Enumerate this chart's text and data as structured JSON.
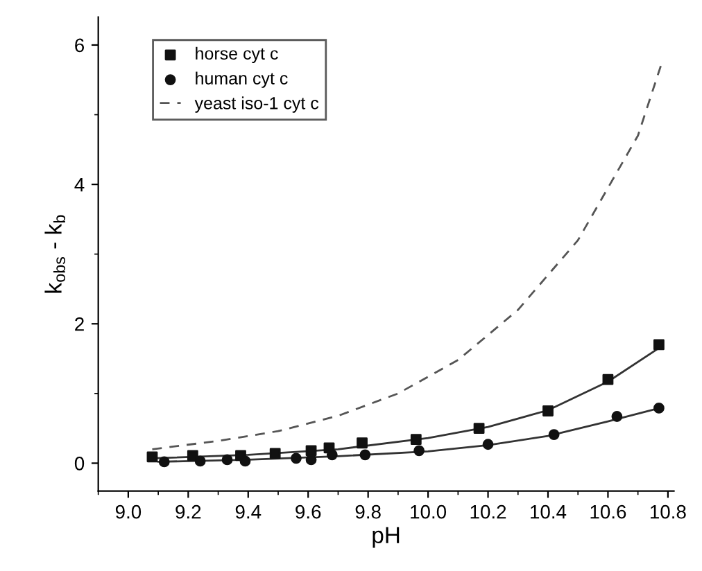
{
  "chart_data": {
    "type": "scatter",
    "xlabel": "pH",
    "ylabel": "k$_{obs}$ - k$_{b}$",
    "xlim": [
      8.9,
      10.82
    ],
    "ylim": [
      -0.4,
      6.4
    ],
    "xticks": [
      {
        "value": 9.0,
        "label": "9.0"
      },
      {
        "value": 9.2,
        "label": "9.2"
      },
      {
        "value": 9.4,
        "label": "9.4"
      },
      {
        "value": 9.6,
        "label": "9.6"
      },
      {
        "value": 9.8,
        "label": "9.8"
      },
      {
        "value": 10.0,
        "label": "10.0"
      },
      {
        "value": 10.2,
        "label": "10.2"
      },
      {
        "value": 10.4,
        "label": "10.4"
      },
      {
        "value": 10.6,
        "label": "10.6"
      },
      {
        "value": 10.8,
        "label": "10.8"
      }
    ],
    "yticks": [
      0,
      2,
      4,
      6
    ],
    "grid": false,
    "legend": "top left",
    "series": [
      {
        "name": "horse cyt c",
        "marker": "square",
        "color": "#111111",
        "x": [
          9.08,
          9.215,
          9.375,
          9.49,
          9.61,
          9.67,
          9.78,
          9.96,
          10.17,
          10.4,
          10.6,
          10.77
        ],
        "values": [
          0.09,
          0.11,
          0.11,
          0.14,
          0.18,
          0.22,
          0.29,
          0.34,
          0.5,
          0.75,
          1.2,
          1.7
        ]
      },
      {
        "name": "human cyt c",
        "marker": "circle",
        "color": "#111111",
        "x": [
          9.12,
          9.24,
          9.33,
          9.39,
          9.56,
          9.61,
          9.68,
          9.79,
          9.97,
          10.2,
          10.42,
          10.63,
          10.77
        ],
        "values": [
          0.02,
          0.03,
          0.05,
          0.03,
          0.07,
          0.05,
          0.12,
          0.12,
          0.18,
          0.27,
          0.41,
          0.67,
          0.79
        ]
      },
      {
        "name": "yeast iso-1 cyt c",
        "type": "line",
        "line_style": "dashed",
        "color": "#555555",
        "x": [
          9.08,
          9.3,
          9.5,
          9.7,
          9.9,
          10.1,
          10.3,
          10.5,
          10.7,
          10.78
        ],
        "values": [
          0.2,
          0.32,
          0.46,
          0.68,
          1.0,
          1.48,
          2.2,
          3.2,
          4.7,
          5.75
        ]
      },
      {
        "type": "line",
        "line_style": "solid",
        "color": "#333333",
        "x": [
          9.08,
          9.4,
          9.7,
          10.0,
          10.2,
          10.4,
          10.6,
          10.78
        ],
        "values": [
          0.07,
          0.12,
          0.2,
          0.36,
          0.52,
          0.76,
          1.17,
          1.68
        ]
      },
      {
        "type": "line",
        "line_style": "solid",
        "color": "#333333",
        "x": [
          9.1,
          9.4,
          9.7,
          10.0,
          10.2,
          10.4,
          10.6,
          10.78
        ],
        "values": [
          0.02,
          0.05,
          0.1,
          0.17,
          0.26,
          0.39,
          0.6,
          0.8
        ]
      }
    ]
  }
}
